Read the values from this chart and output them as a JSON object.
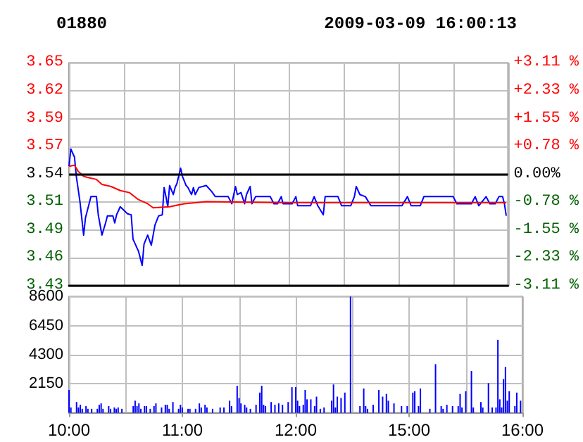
{
  "chart_data": [
    {
      "type": "line",
      "title": "01880",
      "subtitle": "2009-03-09 16:00:13",
      "grid": true,
      "line_style": "solid",
      "tick_labels": [
        "y",
        "y2"
      ],
      "categories": [
        null,
        null,
        null,
        null,
        null,
        null,
        null,
        null,
        null,
        null,
        null,
        null,
        null,
        null,
        null,
        null,
        null,
        null,
        null,
        null,
        null,
        null,
        null,
        null,
        null,
        null,
        null,
        null,
        null,
        null,
        null,
        null,
        null,
        null,
        null,
        null,
        null,
        null,
        null,
        null,
        null,
        null,
        null,
        null,
        null,
        null,
        null,
        null,
        null,
        null,
        null,
        null,
        null,
        null,
        null,
        null,
        null,
        null,
        null,
        null,
        null,
        null,
        null,
        null,
        null,
        null,
        null,
        null,
        null,
        null,
        null,
        null,
        null,
        null,
        null,
        null,
        null,
        null,
        null,
        null,
        null,
        null,
        null,
        null,
        null,
        null,
        null,
        null,
        null,
        null,
        null,
        null,
        null,
        null,
        null,
        null,
        null,
        null,
        null,
        null,
        null,
        null,
        null,
        null,
        null,
        null,
        null,
        null,
        null,
        null,
        null,
        null,
        null,
        null,
        null,
        null,
        null,
        null,
        null,
        null,
        null,
        null,
        null,
        null,
        null,
        null,
        null,
        null,
        null,
        null,
        null,
        null,
        null,
        null,
        null,
        null,
        null,
        null,
        null,
        null,
        null,
        null,
        null,
        null,
        null,
        null,
        null,
        null,
        null,
        null,
        null,
        null,
        null,
        null,
        null,
        null,
        null,
        null,
        null,
        null,
        null,
        null,
        null,
        null,
        null,
        null,
        null,
        null,
        null,
        null,
        null,
        null,
        null,
        null,
        null,
        null,
        null,
        null,
        null,
        null,
        null,
        null,
        null,
        null,
        null,
        null,
        null,
        null,
        null,
        null,
        null,
        null,
        null,
        null,
        null,
        null,
        null,
        null,
        null,
        null,
        null,
        null,
        null,
        null,
        null,
        null,
        null,
        null,
        null,
        null,
        null,
        null,
        null,
        null,
        null,
        null,
        null,
        null,
        null,
        null,
        null,
        null,
        null,
        null,
        null,
        null,
        null,
        null,
        null,
        null,
        null,
        null,
        null,
        null,
        null,
        null,
        null,
        null,
        null,
        null,
        null
      ],
      "ylim": [
        3.43,
        3.65
      ],
      "yticks": [
        {
          "value": 3.43,
          "label": "3.43"
        },
        {
          "value": 3.4575,
          "label": "3.46"
        },
        {
          "value": 3.485,
          "label": "3.49"
        },
        {
          "value": 3.5125,
          "label": "3.51"
        },
        {
          "value": 3.54,
          "label": "3.54"
        },
        {
          "value": 3.5675,
          "label": "3.57"
        },
        {
          "value": 3.595,
          "label": "3.59"
        },
        {
          "value": 3.6225,
          "label": "3.62"
        },
        {
          "value": 3.65,
          "label": "3.65"
        }
      ],
      "y2lim": [
        -3.11,
        3.11
      ],
      "y2ticks": [
        {
          "value": -3.11,
          "label": "-3.11 %"
        },
        {
          "value": -2.3325,
          "label": "-2.33 %"
        },
        {
          "value": -1.555,
          "label": "-1.55 %"
        },
        {
          "value": -0.7775,
          "label": "-0.78 %"
        },
        {
          "value": 0,
          "label": "0.00%"
        },
        {
          "value": 0.7775,
          "label": "+0.78 %"
        },
        {
          "value": 1.555,
          "label": "+1.55 %"
        },
        {
          "value": 2.3325,
          "label": "+2.33 %"
        },
        {
          "value": 3.11,
          "label": "+3.11 %"
        }
      ],
      "ref_lines": [
        {
          "axis": "y",
          "value": 3.54,
          "label": null,
          "color": "#000000"
        }
      ],
      "series": [
        {
          "color": "#0000ff",
          "values": [
            3.548,
            3.565,
            null,
            3.557,
            3.538,
            null,
            3.513,
            null,
            3.48,
            3.497,
            3.504,
            null,
            3.518,
            null,
            null,
            3.518,
            3.5,
            null,
            3.48,
            null,
            3.492,
            3.499,
            null,
            null,
            3.499,
            3.492,
            3.5,
            null,
            3.508,
            null,
            null,
            null,
            3.501,
            null,
            3.5,
            3.476,
            null,
            null,
            3.464,
            null,
            3.45,
            3.471,
            null,
            3.48,
            null,
            3.47,
            null,
            3.49,
            null,
            3.499,
            null,
            3.5,
            3.527,
            3.518,
            3.508,
            3.529,
            null,
            3.52,
            3.527,
            3.531,
            null,
            3.546,
            3.538,
            null,
            3.529,
            3.527,
            null,
            3.52,
            3.527,
            3.52,
            null,
            3.527,
            null,
            3.528,
            null,
            3.529,
            null,
            null,
            3.523,
            null,
            3.518,
            null,
            null,
            null,
            null,
            null,
            null,
            3.518,
            null,
            3.511,
            null,
            3.528,
            3.52,
            null,
            3.522,
            null,
            3.511,
            3.52,
            null,
            3.528,
            3.511,
            null,
            3.518,
            null,
            3.518,
            null,
            null,
            null,
            null,
            null,
            3.518,
            null,
            3.511,
            null,
            3.511,
            null,
            3.518,
            3.511,
            null,
            null,
            null,
            null,
            3.511,
            null,
            3.518,
            3.509,
            null,
            null,
            null,
            null,
            null,
            null,
            3.509,
            null,
            3.518,
            null,
            3.509,
            null,
            null,
            3.5,
            3.518,
            null,
            null,
            null,
            null,
            null,
            null,
            3.518,
            null,
            3.509,
            null,
            null,
            null,
            null,
            3.509,
            null,
            3.518,
            3.528,
            null,
            3.52,
            null,
            null,
            3.518,
            null,
            null,
            3.509,
            null,
            null,
            null,
            null,
            null,
            null,
            null,
            null,
            null,
            null,
            null,
            null,
            null,
            null,
            null,
            null,
            3.509,
            null,
            null,
            3.518,
            null,
            3.509,
            null,
            null,
            null,
            null,
            3.509,
            null,
            3.518,
            null,
            null,
            null,
            null,
            null,
            null,
            null,
            null,
            null,
            null,
            null,
            null,
            null,
            null,
            null,
            3.518,
            null,
            3.511,
            null,
            null,
            null,
            null,
            null,
            null,
            null,
            3.511,
            null,
            3.518,
            null,
            3.509,
            null,
            null,
            null,
            3.518,
            null,
            3.511,
            null,
            null,
            3.511,
            null,
            3.518,
            null,
            3.518,
            3.511,
            3.499,
            null
          ]
        },
        {
          "color": "#ff0000",
          "values": [
            3.548,
            null,
            null,
            3.549,
            null,
            3.543,
            null,
            null,
            3.538,
            null,
            3.537,
            null,
            null,
            null,
            null,
            3.535,
            null,
            null,
            3.53,
            null,
            null,
            null,
            null,
            3.528,
            null,
            null,
            null,
            null,
            3.524,
            null,
            null,
            null,
            null,
            3.522,
            null,
            null,
            null,
            null,
            3.515,
            null,
            null,
            null,
            null,
            3.511,
            null,
            null,
            3.507,
            null,
            null,
            null,
            null,
            null,
            null,
            null,
            null,
            3.508,
            null,
            null,
            null,
            null,
            null,
            null,
            null,
            3.511,
            null,
            null,
            null,
            null,
            null,
            null,
            null,
            null,
            null,
            null,
            null,
            3.513,
            null,
            null,
            null,
            null,
            null,
            null,
            null,
            null,
            null,
            null,
            null,
            null,
            null,
            null,
            null,
            null,
            null,
            null,
            null,
            null,
            null,
            null,
            null,
            null,
            null,
            null,
            null,
            null,
            null,
            null,
            null,
            null,
            null,
            null,
            null,
            null,
            null,
            null,
            null,
            null,
            null,
            null,
            null,
            null,
            3.512,
            null,
            null,
            null,
            null,
            null,
            null,
            null,
            null,
            null,
            null,
            null,
            null,
            null,
            null,
            null,
            null,
            null,
            null,
            null,
            null,
            null,
            null,
            null,
            null,
            null,
            null,
            null,
            null,
            null,
            null,
            null,
            null,
            null,
            null,
            null,
            null,
            null,
            null,
            null,
            null,
            null,
            null,
            null,
            null,
            null,
            null,
            null,
            null,
            null,
            null,
            null,
            null,
            null,
            null,
            null,
            null,
            null,
            null,
            null,
            3.512,
            null,
            null,
            null,
            null,
            null,
            null,
            null,
            null,
            null,
            null,
            null,
            null,
            null,
            null,
            null,
            null,
            null,
            null,
            null,
            null,
            null,
            null,
            null,
            null,
            null,
            null,
            null,
            null,
            null,
            null,
            null,
            null,
            null,
            null,
            null,
            null,
            null,
            null,
            null,
            null,
            null,
            null,
            null,
            null,
            null,
            null,
            null,
            null,
            null,
            null,
            null,
            null,
            null,
            null,
            null,
            null,
            null,
            null,
            3.512,
            null
          ]
        }
      ]
    },
    {
      "type": "bar",
      "grid": true,
      "categories": [
        "10:00",
        null,
        null,
        null,
        null,
        null,
        null,
        null,
        null,
        null,
        null,
        null,
        null,
        null,
        null,
        null,
        null,
        null,
        null,
        null,
        null,
        null,
        null,
        null,
        null,
        null,
        null,
        null,
        null,
        null,
        null,
        null,
        null,
        null,
        null,
        null,
        null,
        null,
        null,
        null,
        null,
        null,
        null,
        null,
        null,
        null,
        null,
        null,
        null,
        null,
        null,
        null,
        null,
        null,
        null,
        null,
        null,
        null,
        null,
        null,
        "11:00",
        null,
        null,
        null,
        null,
        null,
        null,
        null,
        null,
        null,
        null,
        null,
        null,
        null,
        null,
        null,
        null,
        null,
        null,
        null,
        null,
        null,
        null,
        null,
        null,
        null,
        null,
        null,
        null,
        null,
        null,
        null,
        null,
        null,
        null,
        null,
        null,
        null,
        null,
        null,
        null,
        null,
        null,
        null,
        null,
        null,
        null,
        null,
        null,
        null,
        null,
        null,
        null,
        null,
        null,
        null,
        null,
        null,
        null,
        null,
        "12:00",
        null,
        null,
        null,
        null,
        null,
        null,
        null,
        null,
        null,
        null,
        null,
        null,
        null,
        null,
        null,
        null,
        null,
        null,
        null,
        null,
        null,
        null,
        null,
        null,
        null,
        null,
        null,
        null,
        null,
        null,
        null,
        null,
        null,
        null,
        null,
        null,
        null,
        null,
        null,
        null,
        null,
        null,
        null,
        null,
        null,
        null,
        null,
        null,
        null,
        null,
        null,
        null,
        null,
        null,
        null,
        null,
        null,
        null,
        null,
        "15:00",
        null,
        null,
        null,
        null,
        null,
        null,
        null,
        null,
        null,
        null,
        null,
        null,
        null,
        null,
        null,
        null,
        null,
        null,
        null,
        null,
        null,
        null,
        null,
        null,
        null,
        null,
        null,
        null,
        null,
        null,
        null,
        null,
        null,
        null,
        null,
        null,
        null,
        null,
        null,
        null,
        null,
        null,
        null,
        null,
        null,
        null,
        null,
        null,
        null,
        null,
        null,
        null,
        null,
        null,
        null,
        null,
        null,
        null,
        null,
        "16:00"
      ],
      "ylim": [
        0,
        8600
      ],
      "yticks": [
        {
          "value": 0,
          "label": null
        },
        2150,
        4300,
        6450,
        8600
      ],
      "series": [
        {
          "color": "#0000ff",
          "values": [
            1700,
            400,
            null,
            null,
            800,
            400,
            600,
            300,
            null,
            500,
            300,
            null,
            300,
            null,
            null,
            300,
            600,
            700,
            300,
            null,
            null,
            500,
            300,
            null,
            400,
            300,
            400,
            null,
            300,
            null,
            null,
            null,
            null,
            null,
            500,
            900,
            500,
            700,
            300,
            null,
            500,
            500,
            null,
            300,
            null,
            500,
            700,
            null,
            null,
            400,
            null,
            600,
            600,
            300,
            null,
            800,
            null,
            null,
            300,
            600,
            400,
            null,
            null,
            300,
            300,
            null,
            null,
            300,
            null,
            700,
            400,
            null,
            600,
            400,
            null,
            null,
            300,
            null,
            null,
            null,
            400,
            null,
            400,
            null,
            null,
            900,
            500,
            null,
            null,
            2000,
            1100,
            700,
            null,
            600,
            400,
            null,
            300,
            null,
            null,
            600,
            null,
            1500,
            2000,
            600,
            500,
            null,
            null,
            800,
            null,
            600,
            null,
            700,
            null,
            600,
            null,
            null,
            800,
            null,
            1900,
            null,
            1900,
            900,
            500,
            null,
            600,
            1700,
            1000,
            null,
            1000,
            null,
            500,
            1200,
            null,
            300,
            null,
            400,
            null,
            null,
            null,
            900,
            2100,
            400,
            1200,
            null,
            1100,
            null,
            1500,
            null,
            null,
            8600,
            null,
            null,
            null,
            null,
            500,
            null,
            1800,
            500,
            300,
            null,
            null,
            600,
            null,
            null,
            1700,
            null,
            1200,
            null,
            1400,
            900,
            null,
            null,
            700,
            null,
            null,
            null,
            500,
            null,
            null,
            500,
            null,
            null,
            1500,
            1600,
            null,
            500,
            1800,
            null,
            null,
            null,
            null,
            300,
            null,
            null,
            3600,
            null,
            null,
            500,
            300,
            null,
            600,
            null,
            null,
            500,
            null,
            null,
            500,
            1400,
            400,
            null,
            1600,
            null,
            null,
            3100,
            400,
            null,
            null,
            null,
            800,
            400,
            null,
            null,
            2200,
            null,
            400,
            null,
            400,
            5400,
            1000,
            400,
            2500,
            3400,
            900,
            1600,
            null,
            null,
            500,
            1500,
            null,
            900,
            null
          ]
        }
      ]
    }
  ]
}
